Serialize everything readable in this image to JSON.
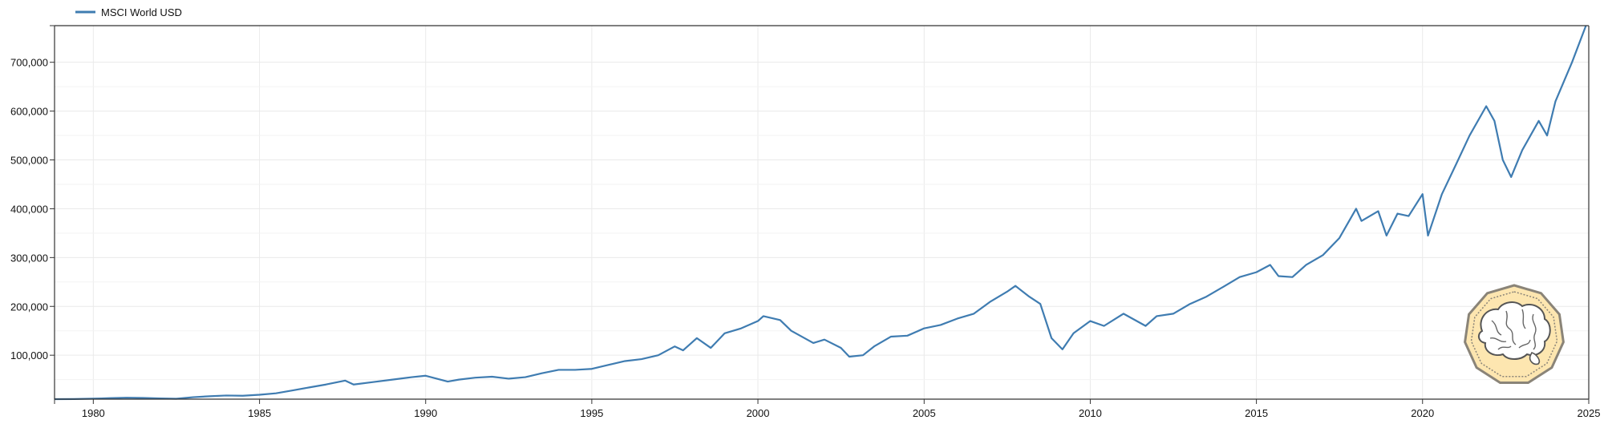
{
  "colors": {
    "series": "#3f7cb1",
    "grid": "#eaeaea",
    "axis": "#333333",
    "logo_fill": "#fde6b0",
    "logo_stroke": "#8a8478"
  },
  "logo": {
    "icon": "brain-coin-icon"
  },
  "chart_data": {
    "type": "line",
    "title": "",
    "xlabel": "",
    "ylabel": "",
    "grid": true,
    "legend": {
      "placement": "top-left"
    },
    "xlim": [
      "1978-11-01",
      "2025-01-01"
    ],
    "ylim": [
      10000,
      775000
    ],
    "x_ticks": [
      {
        "value": "1980-01-01",
        "label": "1980"
      },
      {
        "value": "1985-01-01",
        "label": "1985"
      },
      {
        "value": "1990-01-01",
        "label": "1990"
      },
      {
        "value": "1995-01-01",
        "label": "1995"
      },
      {
        "value": "2000-01-01",
        "label": "2000"
      },
      {
        "value": "2005-01-01",
        "label": "2005"
      },
      {
        "value": "2010-01-01",
        "label": "2010"
      },
      {
        "value": "2015-01-01",
        "label": "2015"
      },
      {
        "value": "2020-01-01",
        "label": "2020"
      },
      {
        "value": "2025-01-01",
        "label": "2025"
      }
    ],
    "y_ticks": [
      {
        "value": 100000,
        "label": "100,000"
      },
      {
        "value": 200000,
        "label": "200,000"
      },
      {
        "value": 300000,
        "label": "300,000"
      },
      {
        "value": 400000,
        "label": "400,000"
      },
      {
        "value": 500000,
        "label": "500,000"
      },
      {
        "value": 600000,
        "label": "600,000"
      },
      {
        "value": 700000,
        "label": "700,000"
      }
    ],
    "series": [
      {
        "name": "MSCI World USD",
        "color": "#3f7cb1",
        "points": [
          [
            "1978-11-01",
            10000
          ],
          [
            "1979-06-01",
            10200
          ],
          [
            "1980-01-01",
            11000
          ],
          [
            "1980-07-01",
            12000
          ],
          [
            "1981-01-01",
            13000
          ],
          [
            "1981-07-01",
            12500
          ],
          [
            "1982-01-01",
            11500
          ],
          [
            "1982-07-01",
            10800
          ],
          [
            "1983-01-01",
            14000
          ],
          [
            "1983-07-01",
            16000
          ],
          [
            "1984-01-01",
            17500
          ],
          [
            "1984-07-01",
            17000
          ],
          [
            "1985-01-01",
            19000
          ],
          [
            "1985-07-01",
            22000
          ],
          [
            "1986-01-01",
            28000
          ],
          [
            "1986-07-01",
            34000
          ],
          [
            "1987-01-01",
            40000
          ],
          [
            "1987-08-01",
            48000
          ],
          [
            "1987-11-01",
            40000
          ],
          [
            "1988-06-01",
            45000
          ],
          [
            "1989-01-01",
            50000
          ],
          [
            "1989-08-01",
            55000
          ],
          [
            "1990-01-01",
            58000
          ],
          [
            "1990-09-01",
            46000
          ],
          [
            "1991-01-01",
            50000
          ],
          [
            "1991-07-01",
            54000
          ],
          [
            "1992-01-01",
            56000
          ],
          [
            "1992-07-01",
            52000
          ],
          [
            "1993-01-01",
            55000
          ],
          [
            "1993-07-01",
            63000
          ],
          [
            "1994-01-01",
            70000
          ],
          [
            "1994-07-01",
            70000
          ],
          [
            "1995-01-01",
            72000
          ],
          [
            "1995-07-01",
            80000
          ],
          [
            "1996-01-01",
            88000
          ],
          [
            "1996-07-01",
            92000
          ],
          [
            "1997-01-01",
            100000
          ],
          [
            "1997-07-01",
            118000
          ],
          [
            "1997-10-01",
            110000
          ],
          [
            "1998-03-01",
            135000
          ],
          [
            "1998-08-01",
            115000
          ],
          [
            "1999-01-01",
            145000
          ],
          [
            "1999-07-01",
            155000
          ],
          [
            "2000-01-01",
            170000
          ],
          [
            "2000-03-01",
            180000
          ],
          [
            "2000-09-01",
            172000
          ],
          [
            "2001-01-01",
            150000
          ],
          [
            "2001-09-01",
            125000
          ],
          [
            "2002-01-01",
            132000
          ],
          [
            "2002-07-01",
            115000
          ],
          [
            "2002-10-01",
            97000
          ],
          [
            "2003-03-01",
            100000
          ],
          [
            "2003-07-01",
            118000
          ],
          [
            "2004-01-01",
            138000
          ],
          [
            "2004-07-01",
            140000
          ],
          [
            "2005-01-01",
            155000
          ],
          [
            "2005-07-01",
            162000
          ],
          [
            "2006-01-01",
            175000
          ],
          [
            "2006-07-01",
            185000
          ],
          [
            "2007-01-01",
            210000
          ],
          [
            "2007-07-01",
            230000
          ],
          [
            "2007-10-01",
            242000
          ],
          [
            "2008-03-01",
            220000
          ],
          [
            "2008-07-01",
            205000
          ],
          [
            "2008-11-01",
            135000
          ],
          [
            "2009-03-01",
            112000
          ],
          [
            "2009-07-01",
            145000
          ],
          [
            "2010-01-01",
            170000
          ],
          [
            "2010-06-01",
            160000
          ],
          [
            "2011-01-01",
            185000
          ],
          [
            "2011-09-01",
            160000
          ],
          [
            "2012-01-01",
            180000
          ],
          [
            "2012-07-01",
            185000
          ],
          [
            "2013-01-01",
            205000
          ],
          [
            "2013-07-01",
            220000
          ],
          [
            "2014-01-01",
            240000
          ],
          [
            "2014-07-01",
            260000
          ],
          [
            "2015-01-01",
            270000
          ],
          [
            "2015-06-01",
            285000
          ],
          [
            "2015-09-01",
            262000
          ],
          [
            "2016-02-01",
            260000
          ],
          [
            "2016-07-01",
            285000
          ],
          [
            "2017-01-01",
            305000
          ],
          [
            "2017-07-01",
            340000
          ],
          [
            "2018-01-01",
            400000
          ],
          [
            "2018-03-01",
            375000
          ],
          [
            "2018-09-01",
            395000
          ],
          [
            "2018-12-01",
            345000
          ],
          [
            "2019-04-01",
            390000
          ],
          [
            "2019-08-01",
            385000
          ],
          [
            "2020-01-01",
            430000
          ],
          [
            "2020-03-01",
            345000
          ],
          [
            "2020-08-01",
            430000
          ],
          [
            "2021-01-01",
            490000
          ],
          [
            "2021-06-01",
            550000
          ],
          [
            "2021-12-01",
            610000
          ],
          [
            "2022-03-01",
            580000
          ],
          [
            "2022-06-01",
            500000
          ],
          [
            "2022-09-01",
            465000
          ],
          [
            "2023-01-01",
            520000
          ],
          [
            "2023-07-01",
            580000
          ],
          [
            "2023-10-01",
            550000
          ],
          [
            "2024-01-01",
            620000
          ],
          [
            "2024-07-01",
            700000
          ],
          [
            "2024-12-01",
            775000
          ]
        ]
      }
    ]
  }
}
